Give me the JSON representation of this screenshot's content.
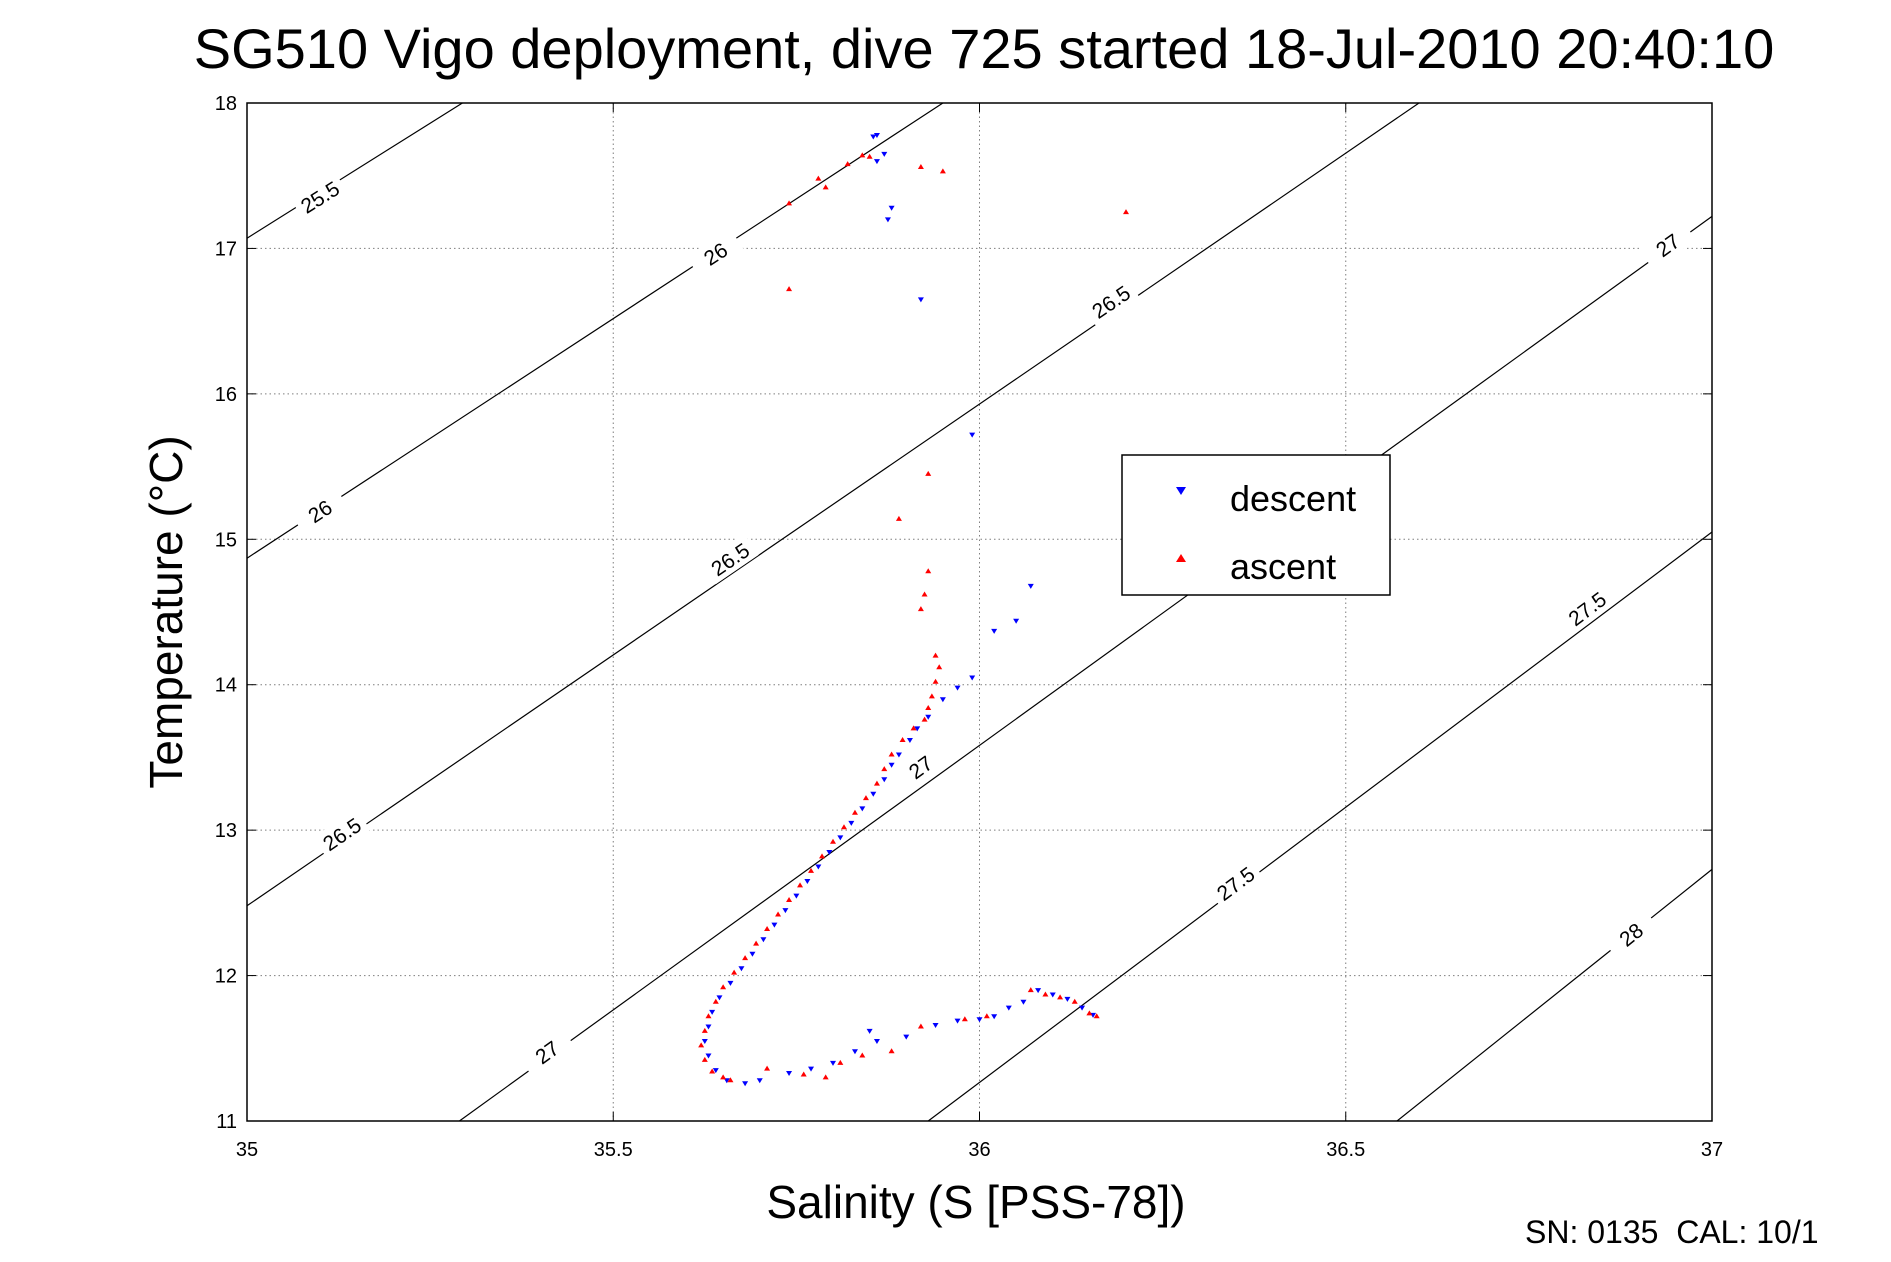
{
  "chart_data": {
    "type": "scatter",
    "title": "SG510 Vigo deployment, dive 725 started 18-Jul-2010 20:40:10",
    "xlabel": "Salinity (S [PSS-78])",
    "ylabel": "Temperature (°C)",
    "xlim": [
      35,
      37
    ],
    "ylim": [
      11,
      18
    ],
    "x_ticks": [
      "35",
      "35.5",
      "36",
      "36.5",
      "37"
    ],
    "y_ticks": [
      "11",
      "12",
      "13",
      "14",
      "15",
      "16",
      "17",
      "18"
    ],
    "grid": true,
    "legend_position": "center-right",
    "footer_text": "SN: 0135  CAL: 10/1",
    "contours": [
      {
        "level": 25.5,
        "label": "25.5",
        "pts": [
          [
            35.0,
            17.07
          ],
          [
            35.294,
            18.0
          ]
        ]
      },
      {
        "level": 26,
        "label": "26",
        "pts": [
          [
            35.0,
            14.87
          ],
          [
            35.95,
            18.0
          ]
        ]
      },
      {
        "level": 26.5,
        "label": "26.5",
        "pts": [
          [
            35.0,
            12.48
          ],
          [
            36.6,
            18.0
          ]
        ]
      },
      {
        "level": 27,
        "label": "27",
        "pts": [
          [
            35.29,
            11.0
          ],
          [
            37.0,
            17.22
          ]
        ]
      },
      {
        "level": 27.5,
        "label": "27.5",
        "pts": [
          [
            35.93,
            11.0
          ],
          [
            37.0,
            15.05
          ]
        ]
      },
      {
        "level": 28,
        "label": "28",
        "pts": [
          [
            36.57,
            11.0
          ],
          [
            37.0,
            12.73
          ]
        ]
      }
    ],
    "contour_labels": [
      {
        "text": "25.5",
        "x": 35.1,
        "y": 17.35
      },
      {
        "text": "26",
        "x": 35.1,
        "y": 15.19
      },
      {
        "text": "26",
        "x": 35.64,
        "y": 16.96
      },
      {
        "text": "26.5",
        "x": 35.13,
        "y": 12.97
      },
      {
        "text": "26.5",
        "x": 35.66,
        "y": 14.86
      },
      {
        "text": "26.5",
        "x": 36.18,
        "y": 16.63
      },
      {
        "text": "27",
        "x": 35.41,
        "y": 11.47
      },
      {
        "text": "27",
        "x": 35.92,
        "y": 13.43
      },
      {
        "text": "27",
        "x": 36.94,
        "y": 17.02
      },
      {
        "text": "27.5",
        "x": 36.35,
        "y": 12.63
      },
      {
        "text": "27.5",
        "x": 36.83,
        "y": 14.52
      },
      {
        "text": "28",
        "x": 36.89,
        "y": 12.28
      }
    ],
    "series": [
      {
        "name": "descent",
        "color": "#0000ff",
        "marker": "triangle-down",
        "values": [
          [
            35.86,
            17.78
          ],
          [
            35.855,
            17.77
          ],
          [
            35.87,
            17.65
          ],
          [
            35.86,
            17.6
          ],
          [
            35.88,
            17.28
          ],
          [
            35.875,
            17.2
          ],
          [
            35.92,
            16.65
          ],
          [
            35.99,
            15.72
          ],
          [
            36.07,
            14.68
          ],
          [
            36.05,
            14.44
          ],
          [
            36.02,
            14.37
          ],
          [
            35.99,
            14.05
          ],
          [
            35.97,
            13.98
          ],
          [
            35.95,
            13.9
          ],
          [
            35.93,
            13.78
          ],
          [
            35.915,
            13.7
          ],
          [
            35.905,
            13.62
          ],
          [
            35.89,
            13.52
          ],
          [
            35.88,
            13.45
          ],
          [
            35.87,
            13.35
          ],
          [
            35.855,
            13.25
          ],
          [
            35.84,
            13.15
          ],
          [
            35.825,
            13.05
          ],
          [
            35.81,
            12.95
          ],
          [
            35.795,
            12.85
          ],
          [
            35.78,
            12.75
          ],
          [
            35.765,
            12.65
          ],
          [
            35.75,
            12.55
          ],
          [
            35.735,
            12.45
          ],
          [
            35.72,
            12.35
          ],
          [
            35.705,
            12.25
          ],
          [
            35.69,
            12.15
          ],
          [
            35.675,
            12.05
          ],
          [
            35.66,
            11.95
          ],
          [
            35.645,
            11.85
          ],
          [
            35.635,
            11.75
          ],
          [
            35.63,
            11.65
          ],
          [
            35.625,
            11.55
          ],
          [
            35.63,
            11.45
          ],
          [
            35.64,
            11.35
          ],
          [
            35.655,
            11.28
          ],
          [
            35.68,
            11.26
          ],
          [
            35.7,
            11.28
          ],
          [
            35.74,
            11.33
          ],
          [
            35.77,
            11.36
          ],
          [
            35.8,
            11.4
          ],
          [
            35.83,
            11.48
          ],
          [
            35.86,
            11.55
          ],
          [
            35.85,
            11.62
          ],
          [
            35.9,
            11.58
          ],
          [
            35.94,
            11.66
          ],
          [
            35.97,
            11.69
          ],
          [
            36.0,
            11.7
          ],
          [
            36.02,
            11.72
          ],
          [
            36.04,
            11.78
          ],
          [
            36.06,
            11.82
          ],
          [
            36.08,
            11.9
          ],
          [
            36.1,
            11.87
          ],
          [
            36.12,
            11.84
          ],
          [
            36.14,
            11.78
          ],
          [
            36.155,
            11.73
          ]
        ]
      },
      {
        "name": "ascent",
        "color": "#ff0000",
        "marker": "triangle-up",
        "values": [
          [
            35.84,
            17.64
          ],
          [
            35.85,
            17.63
          ],
          [
            35.82,
            17.58
          ],
          [
            35.78,
            17.48
          ],
          [
            35.79,
            17.42
          ],
          [
            35.74,
            17.31
          ],
          [
            35.92,
            17.56
          ],
          [
            35.95,
            17.53
          ],
          [
            36.2,
            17.25
          ],
          [
            35.74,
            16.72
          ],
          [
            35.93,
            15.45
          ],
          [
            35.89,
            15.14
          ],
          [
            35.93,
            14.78
          ],
          [
            35.925,
            14.62
          ],
          [
            35.92,
            14.52
          ],
          [
            35.94,
            14.2
          ],
          [
            35.945,
            14.12
          ],
          [
            35.94,
            14.02
          ],
          [
            35.935,
            13.92
          ],
          [
            35.93,
            13.84
          ],
          [
            35.925,
            13.76
          ],
          [
            35.91,
            13.7
          ],
          [
            35.895,
            13.62
          ],
          [
            35.88,
            13.52
          ],
          [
            35.87,
            13.42
          ],
          [
            35.86,
            13.32
          ],
          [
            35.845,
            13.22
          ],
          [
            35.83,
            13.12
          ],
          [
            35.815,
            13.02
          ],
          [
            35.8,
            12.92
          ],
          [
            35.785,
            12.82
          ],
          [
            35.77,
            12.72
          ],
          [
            35.755,
            12.62
          ],
          [
            35.74,
            12.52
          ],
          [
            35.725,
            12.42
          ],
          [
            35.71,
            12.32
          ],
          [
            35.695,
            12.22
          ],
          [
            35.68,
            12.12
          ],
          [
            35.665,
            12.02
          ],
          [
            35.65,
            11.92
          ],
          [
            35.64,
            11.82
          ],
          [
            35.63,
            11.72
          ],
          [
            35.625,
            11.62
          ],
          [
            35.62,
            11.52
          ],
          [
            35.625,
            11.42
          ],
          [
            35.635,
            11.34
          ],
          [
            35.65,
            11.3
          ],
          [
            35.66,
            11.28
          ],
          [
            35.71,
            11.36
          ],
          [
            35.76,
            11.32
          ],
          [
            35.79,
            11.3
          ],
          [
            35.81,
            11.4
          ],
          [
            35.84,
            11.45
          ],
          [
            35.88,
            11.48
          ],
          [
            35.92,
            11.65
          ],
          [
            35.98,
            11.7
          ],
          [
            36.01,
            11.72
          ],
          [
            36.07,
            11.9
          ],
          [
            36.09,
            11.87
          ],
          [
            36.11,
            11.85
          ],
          [
            36.13,
            11.82
          ],
          [
            36.15,
            11.74
          ],
          [
            36.16,
            11.72
          ]
        ]
      }
    ]
  }
}
